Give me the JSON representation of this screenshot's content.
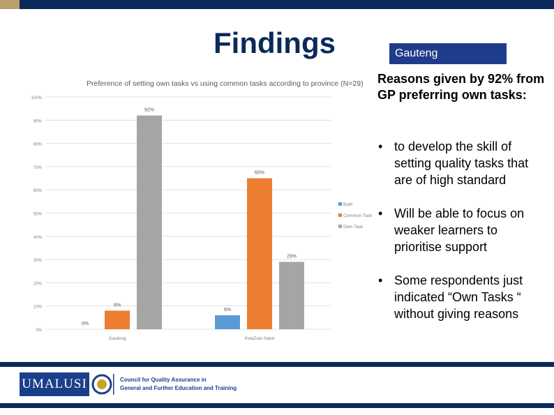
{
  "slide": {
    "title": "Findings",
    "tag": "Gauteng",
    "subheading": "Reasons given by 92% from GP preferring own tasks:",
    "bullets": [
      "to develop the skill of setting quality tasks that are of high standard",
      "Will be able to focus on weaker learners to prioritise support",
      "Some respondents just indicated “Own Tasks “ without giving reasons"
    ],
    "bullet_glyph": "•"
  },
  "footer": {
    "logo_text": "UMALUSI",
    "council_line1": "Council for Quality Assurance in",
    "council_line2": "General and Further Education and Training"
  },
  "colors": {
    "navy": "#0b2a5a",
    "both": "#5b9bd5",
    "common": "#ed7d31",
    "own": "#a5a5a5"
  },
  "chart_data": {
    "type": "bar",
    "title": "Preference of setting own tasks vs using common tasks according to province (N=29)",
    "categories": [
      "Gauteng",
      "KwaZulu Natal"
    ],
    "series": [
      {
        "name": "Both",
        "values": [
          0,
          6
        ],
        "labels": [
          "0%",
          "6%"
        ],
        "color": "#5b9bd5"
      },
      {
        "name": "Common Task",
        "values": [
          8,
          65
        ],
        "labels": [
          "8%",
          "65%"
        ],
        "color": "#ed7d31"
      },
      {
        "name": "Own Task",
        "values": [
          92,
          29
        ],
        "labels": [
          "92%",
          "29%"
        ],
        "color": "#a5a5a5"
      }
    ],
    "ylim": [
      0,
      100
    ],
    "yticks": [
      "0%",
      "10%",
      "20%",
      "30%",
      "40%",
      "50%",
      "60%",
      "70%",
      "80%",
      "90%",
      "100%"
    ],
    "grid": true,
    "legend": "right"
  }
}
